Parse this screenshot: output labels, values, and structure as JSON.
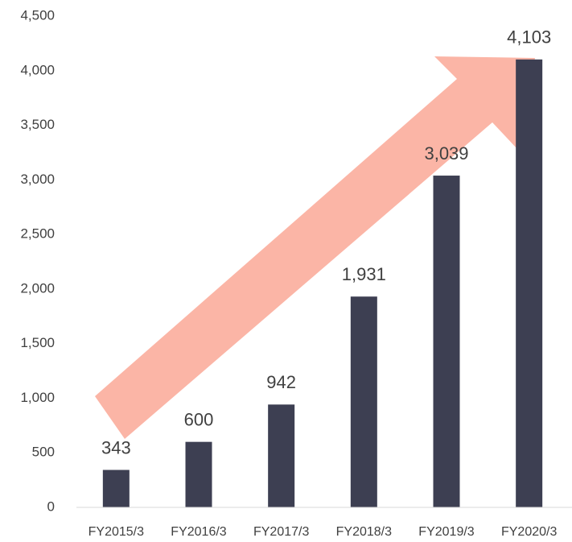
{
  "chart_data": {
    "type": "bar",
    "categories": [
      "FY2015/3",
      "FY2016/3",
      "FY2017/3",
      "FY2018/3",
      "FY2019/3",
      "FY2020/3"
    ],
    "values": [
      343,
      600,
      942,
      1931,
      3039,
      4103
    ],
    "value_labels": [
      "343",
      "600",
      "942",
      "1,931",
      "3,039",
      "4,103"
    ],
    "color": "#3d3f52",
    "ylim": [
      0,
      4500
    ],
    "yticks": [
      0,
      500,
      {
        "value": 1000,
        "label": "1,000"
      },
      {
        "value": 1500,
        "label": "1,500"
      },
      {
        "value": 2000,
        "label": "2,000"
      },
      {
        "value": 2500,
        "label": "2,500"
      },
      {
        "value": 3000,
        "label": "3,000"
      },
      {
        "value": 3500,
        "label": "3,500"
      },
      {
        "value": 4000,
        "label": "4,000"
      },
      {
        "value": 4500,
        "label": "4,500"
      }
    ],
    "grid": false
  }
}
